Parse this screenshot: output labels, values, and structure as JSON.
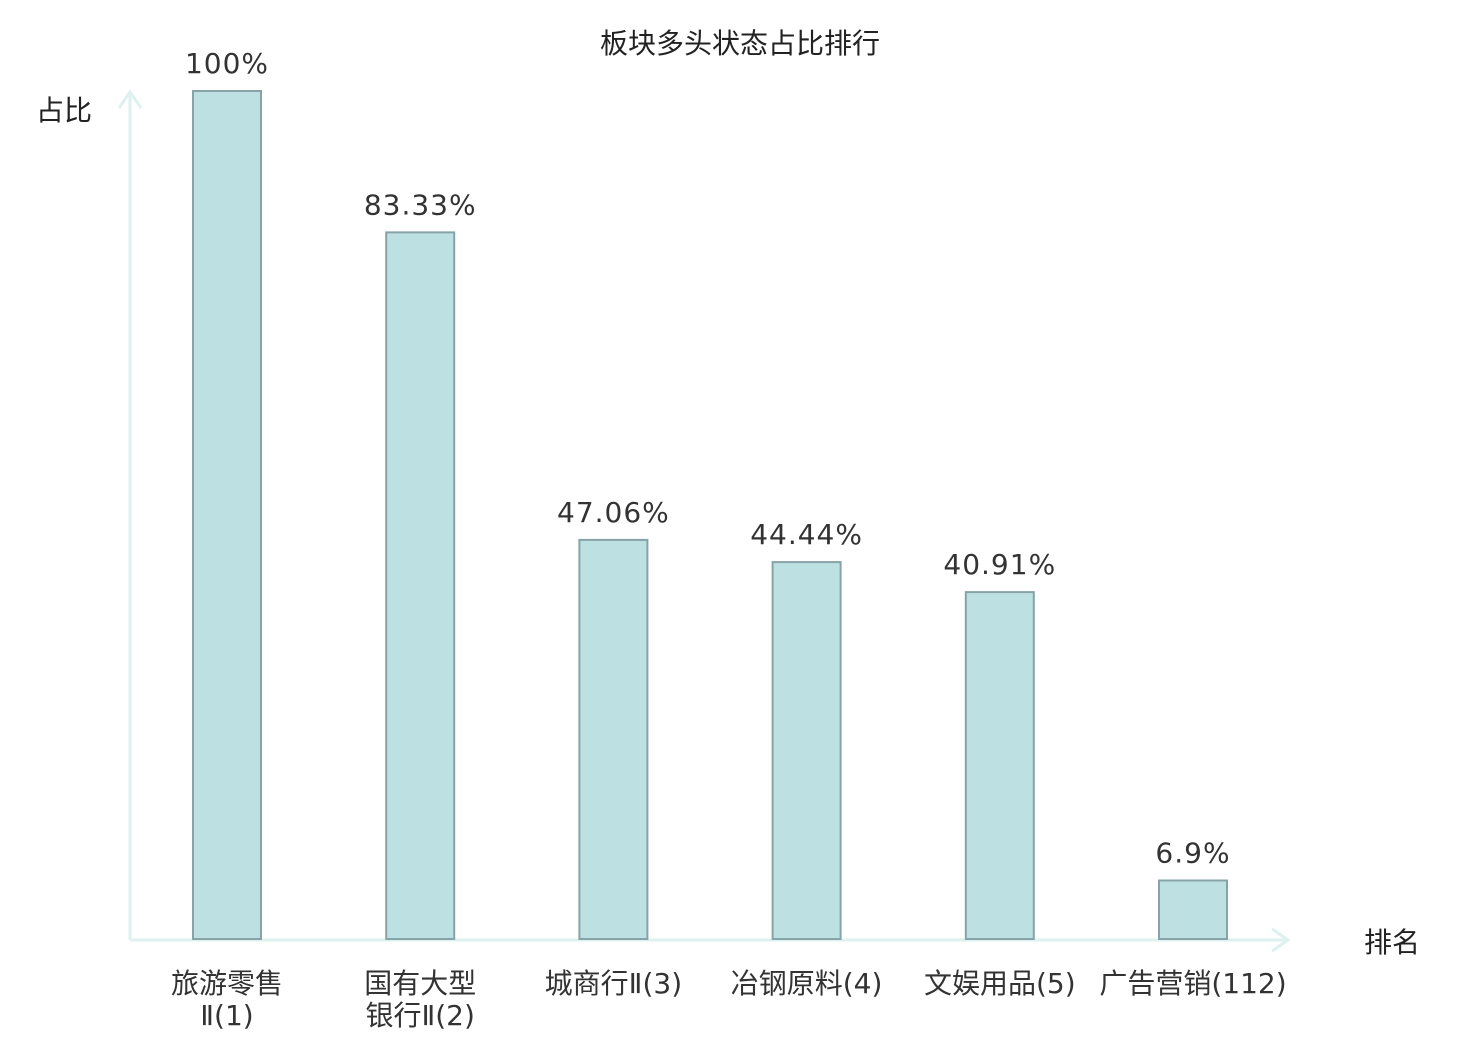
{
  "chart_data": {
    "type": "bar",
    "title": "板块多头状态占比排行",
    "ylabel": "占比",
    "xlabel": "排名",
    "ylim": [
      0,
      100
    ],
    "grid": false,
    "categories": [
      {
        "lines": [
          "旅游零售",
          "Ⅱ(1)"
        ],
        "highlight": false
      },
      {
        "lines": [
          "国有大型",
          "银行Ⅱ(2)"
        ],
        "highlight": false
      },
      {
        "lines": [
          "城商行Ⅱ(3)"
        ],
        "highlight": false
      },
      {
        "lines": [
          "冶钢原料(4)"
        ],
        "highlight": false
      },
      {
        "lines": [
          "文娱用品(5)"
        ],
        "highlight": false
      },
      {
        "lines": [
          "广告营销(112)"
        ],
        "highlight": true
      }
    ],
    "values": [
      100,
      83.33,
      47.06,
      44.44,
      40.91,
      6.9
    ],
    "value_labels": [
      "100%",
      "83.33%",
      "47.06%",
      "44.44%",
      "40.91%",
      "6.9%"
    ],
    "colors": {
      "bar_fill": "#bde0e3",
      "bar_stroke": "#86a4a8",
      "axis": "#ddf2ef",
      "highlight_text": "#e8150f",
      "text": "#333333"
    }
  }
}
